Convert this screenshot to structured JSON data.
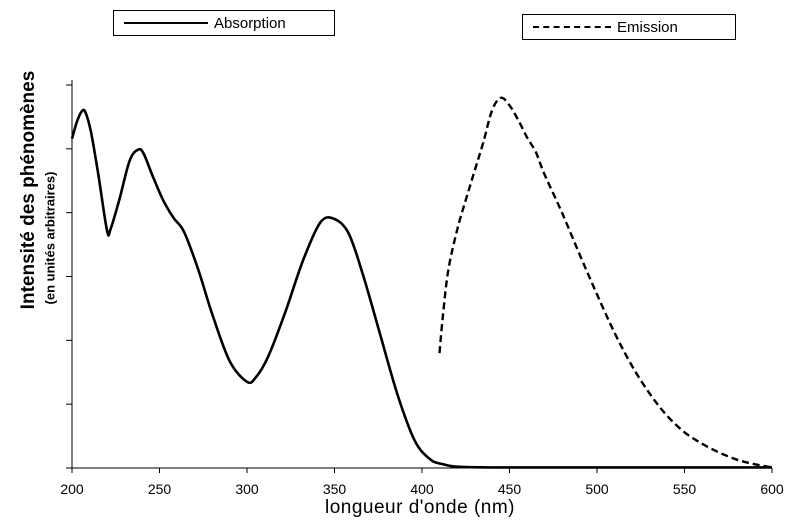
{
  "chart_data": {
    "type": "line",
    "xlabel": "longueur d'onde (nm)",
    "ylabel": "Intensité des phénomènes",
    "ylabel_sub": "(en unités arbitraires)",
    "xlim": [
      200,
      600
    ],
    "ylim": [
      0,
      6
    ],
    "x_ticks": [
      200,
      250,
      300,
      350,
      400,
      450,
      500,
      550,
      600
    ],
    "y_tick_count": 6,
    "y_tick_labels_shown": false,
    "legend_placement": "top",
    "series": [
      {
        "name": "Absorption",
        "style": "solid",
        "color": "#000000",
        "x": [
          200,
          203,
          206,
          208,
          211,
          215,
          220,
          222,
          227,
          233,
          238,
          241,
          246,
          252,
          258,
          264,
          272,
          280,
          290,
          300,
          305,
          312,
          322,
          332,
          342,
          350,
          358,
          366,
          376,
          386,
          396,
          405,
          412,
          420,
          440,
          500,
          560,
          600
        ],
        "y": [
          5.16,
          5.44,
          5.6,
          5.55,
          5.24,
          4.6,
          3.72,
          3.74,
          4.2,
          4.82,
          4.99,
          4.92,
          4.58,
          4.2,
          3.92,
          3.7,
          3.12,
          2.42,
          1.68,
          1.35,
          1.42,
          1.74,
          2.45,
          3.25,
          3.85,
          3.9,
          3.68,
          3.05,
          2.1,
          1.15,
          0.42,
          0.13,
          0.06,
          0.02,
          0.01,
          0.01,
          0.01,
          0.01
        ]
      },
      {
        "name": "Emission",
        "style": "dashed",
        "color": "#000000",
        "x": [
          410,
          412,
          415,
          420,
          425,
          430,
          435,
          440,
          445,
          450,
          455,
          460,
          465,
          470,
          480,
          490,
          500,
          510,
          520,
          530,
          540,
          550,
          560,
          570,
          580,
          590,
          600
        ],
        "y": [
          1.8,
          2.4,
          3.1,
          3.72,
          4.2,
          4.65,
          5.1,
          5.6,
          5.8,
          5.68,
          5.45,
          5.18,
          4.95,
          4.6,
          4.0,
          3.35,
          2.72,
          2.12,
          1.6,
          1.17,
          0.82,
          0.56,
          0.38,
          0.24,
          0.13,
          0.06,
          0.01
        ]
      }
    ]
  }
}
